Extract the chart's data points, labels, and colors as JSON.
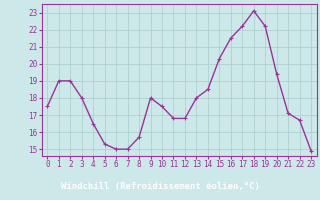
{
  "x": [
    0,
    1,
    2,
    3,
    4,
    5,
    6,
    7,
    8,
    9,
    10,
    11,
    12,
    13,
    14,
    15,
    16,
    17,
    18,
    19,
    20,
    21,
    22,
    23
  ],
  "y": [
    17.5,
    19.0,
    19.0,
    18.0,
    16.5,
    15.3,
    15.0,
    15.0,
    15.7,
    18.0,
    17.5,
    16.8,
    16.8,
    18.0,
    18.5,
    20.3,
    21.5,
    22.2,
    23.1,
    22.2,
    19.4,
    17.1,
    16.7,
    14.9
  ],
  "line_color": "#993399",
  "marker": "+",
  "marker_size": 3,
  "bg_color": "#cce8e8",
  "grid_color": "#aacccc",
  "plot_bg": "#cce8e8",
  "xlabel": "Windchill (Refroidissement éolien,°C)",
  "xlabel_fontsize": 6.5,
  "xlabel_color": "#993399",
  "xlabel_bg": "#9900aa",
  "ytick_labels": [
    "15",
    "16",
    "17",
    "18",
    "19",
    "20",
    "21",
    "22",
    "23"
  ],
  "ytick_vals": [
    15,
    16,
    17,
    18,
    19,
    20,
    21,
    22,
    23
  ],
  "xtick_vals": [
    0,
    1,
    2,
    3,
    4,
    5,
    6,
    7,
    8,
    9,
    10,
    11,
    12,
    13,
    14,
    15,
    16,
    17,
    18,
    19,
    20,
    21,
    22,
    23
  ],
  "ylim": [
    14.6,
    23.5
  ],
  "xlim": [
    -0.5,
    23.5
  ],
  "tick_fontsize": 5.5,
  "linewidth": 1.0
}
